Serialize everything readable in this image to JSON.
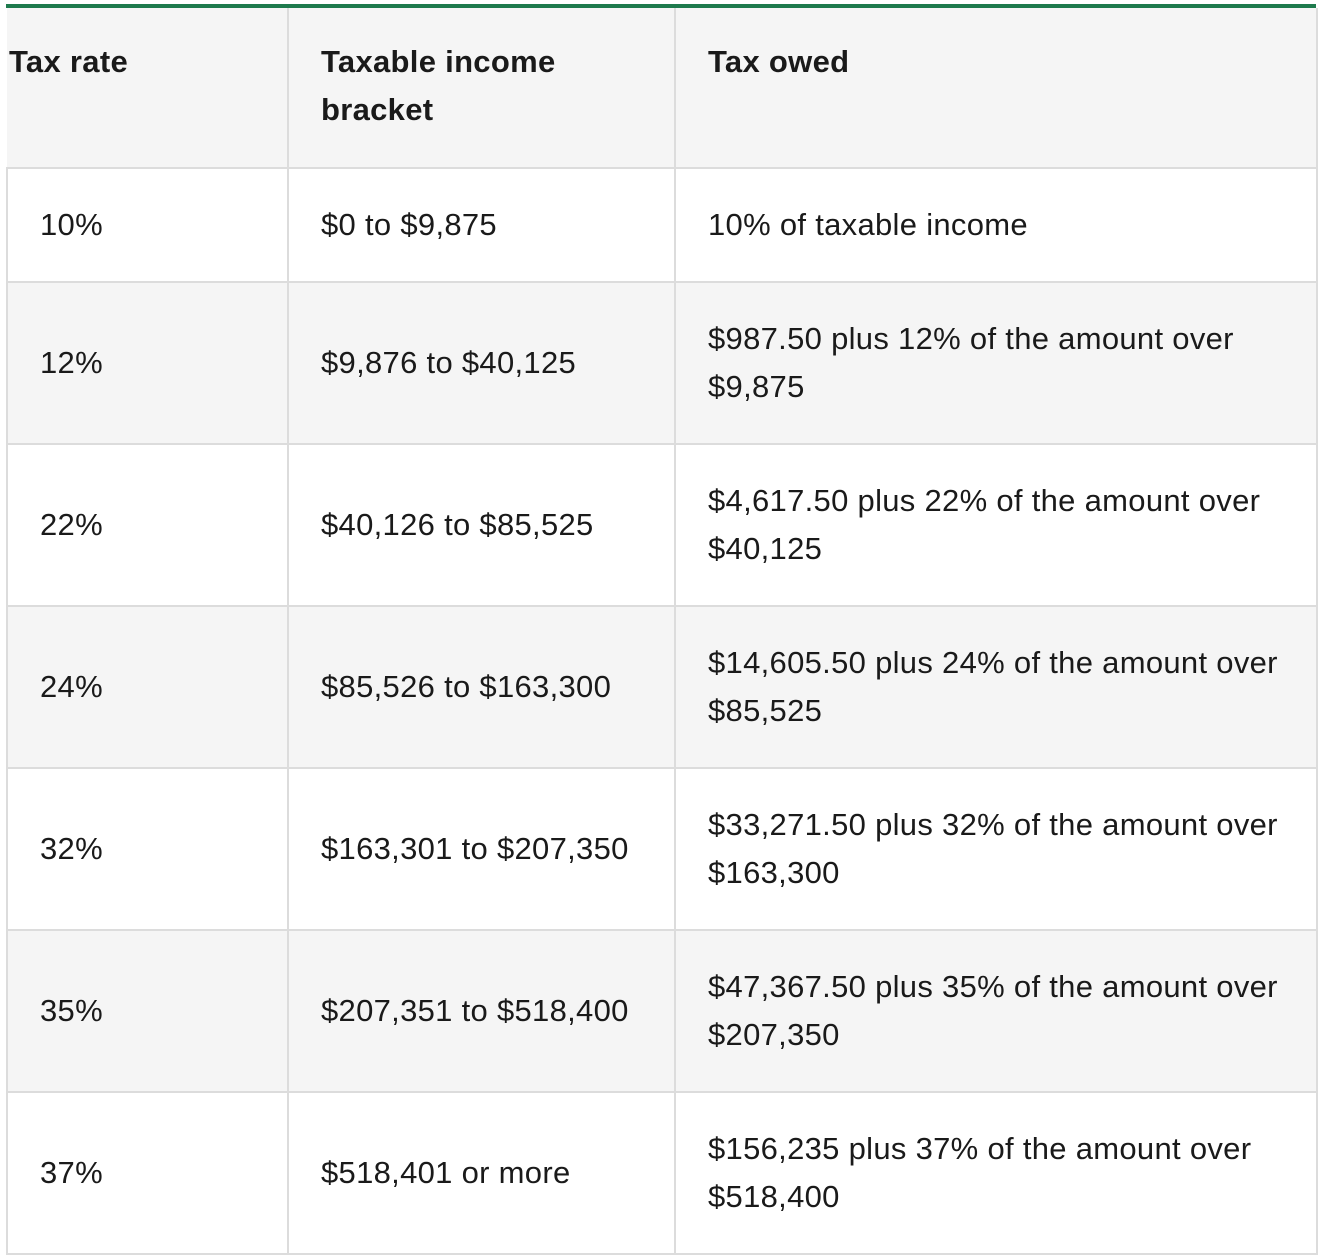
{
  "table": {
    "headers": [
      "Tax rate",
      "Taxable income bracket",
      "Tax owed"
    ],
    "rows": [
      {
        "rate": "10%",
        "bracket": "$0 to $9,875",
        "owed": "10% of taxable income"
      },
      {
        "rate": "12%",
        "bracket": "$9,876 to $40,125",
        "owed": "$987.50 plus 12% of the amount over $9,875"
      },
      {
        "rate": "22%",
        "bracket": "$40,126 to $85,525",
        "owed": "$4,617.50 plus 22% of the amount over $40,125"
      },
      {
        "rate": "24%",
        "bracket": "$85,526 to $163,300",
        "owed": "$14,605.50 plus 24% of the amount over $85,525"
      },
      {
        "rate": "32%",
        "bracket": "$163,301 to $207,350",
        "owed": "$33,271.50 plus 32% of the amount over $163,300"
      },
      {
        "rate": "35%",
        "bracket": "$207,351 to $518,400",
        "owed": "$47,367.50 plus 35% of the amount over $207,350"
      },
      {
        "rate": "37%",
        "bracket": "$518,401 or more",
        "owed": "$156,235 plus 37% of the amount over $518,400"
      }
    ]
  },
  "colors": {
    "accent": "#1e7a4d",
    "stripe": "#f5f5f5",
    "border": "#dcdcdc"
  }
}
